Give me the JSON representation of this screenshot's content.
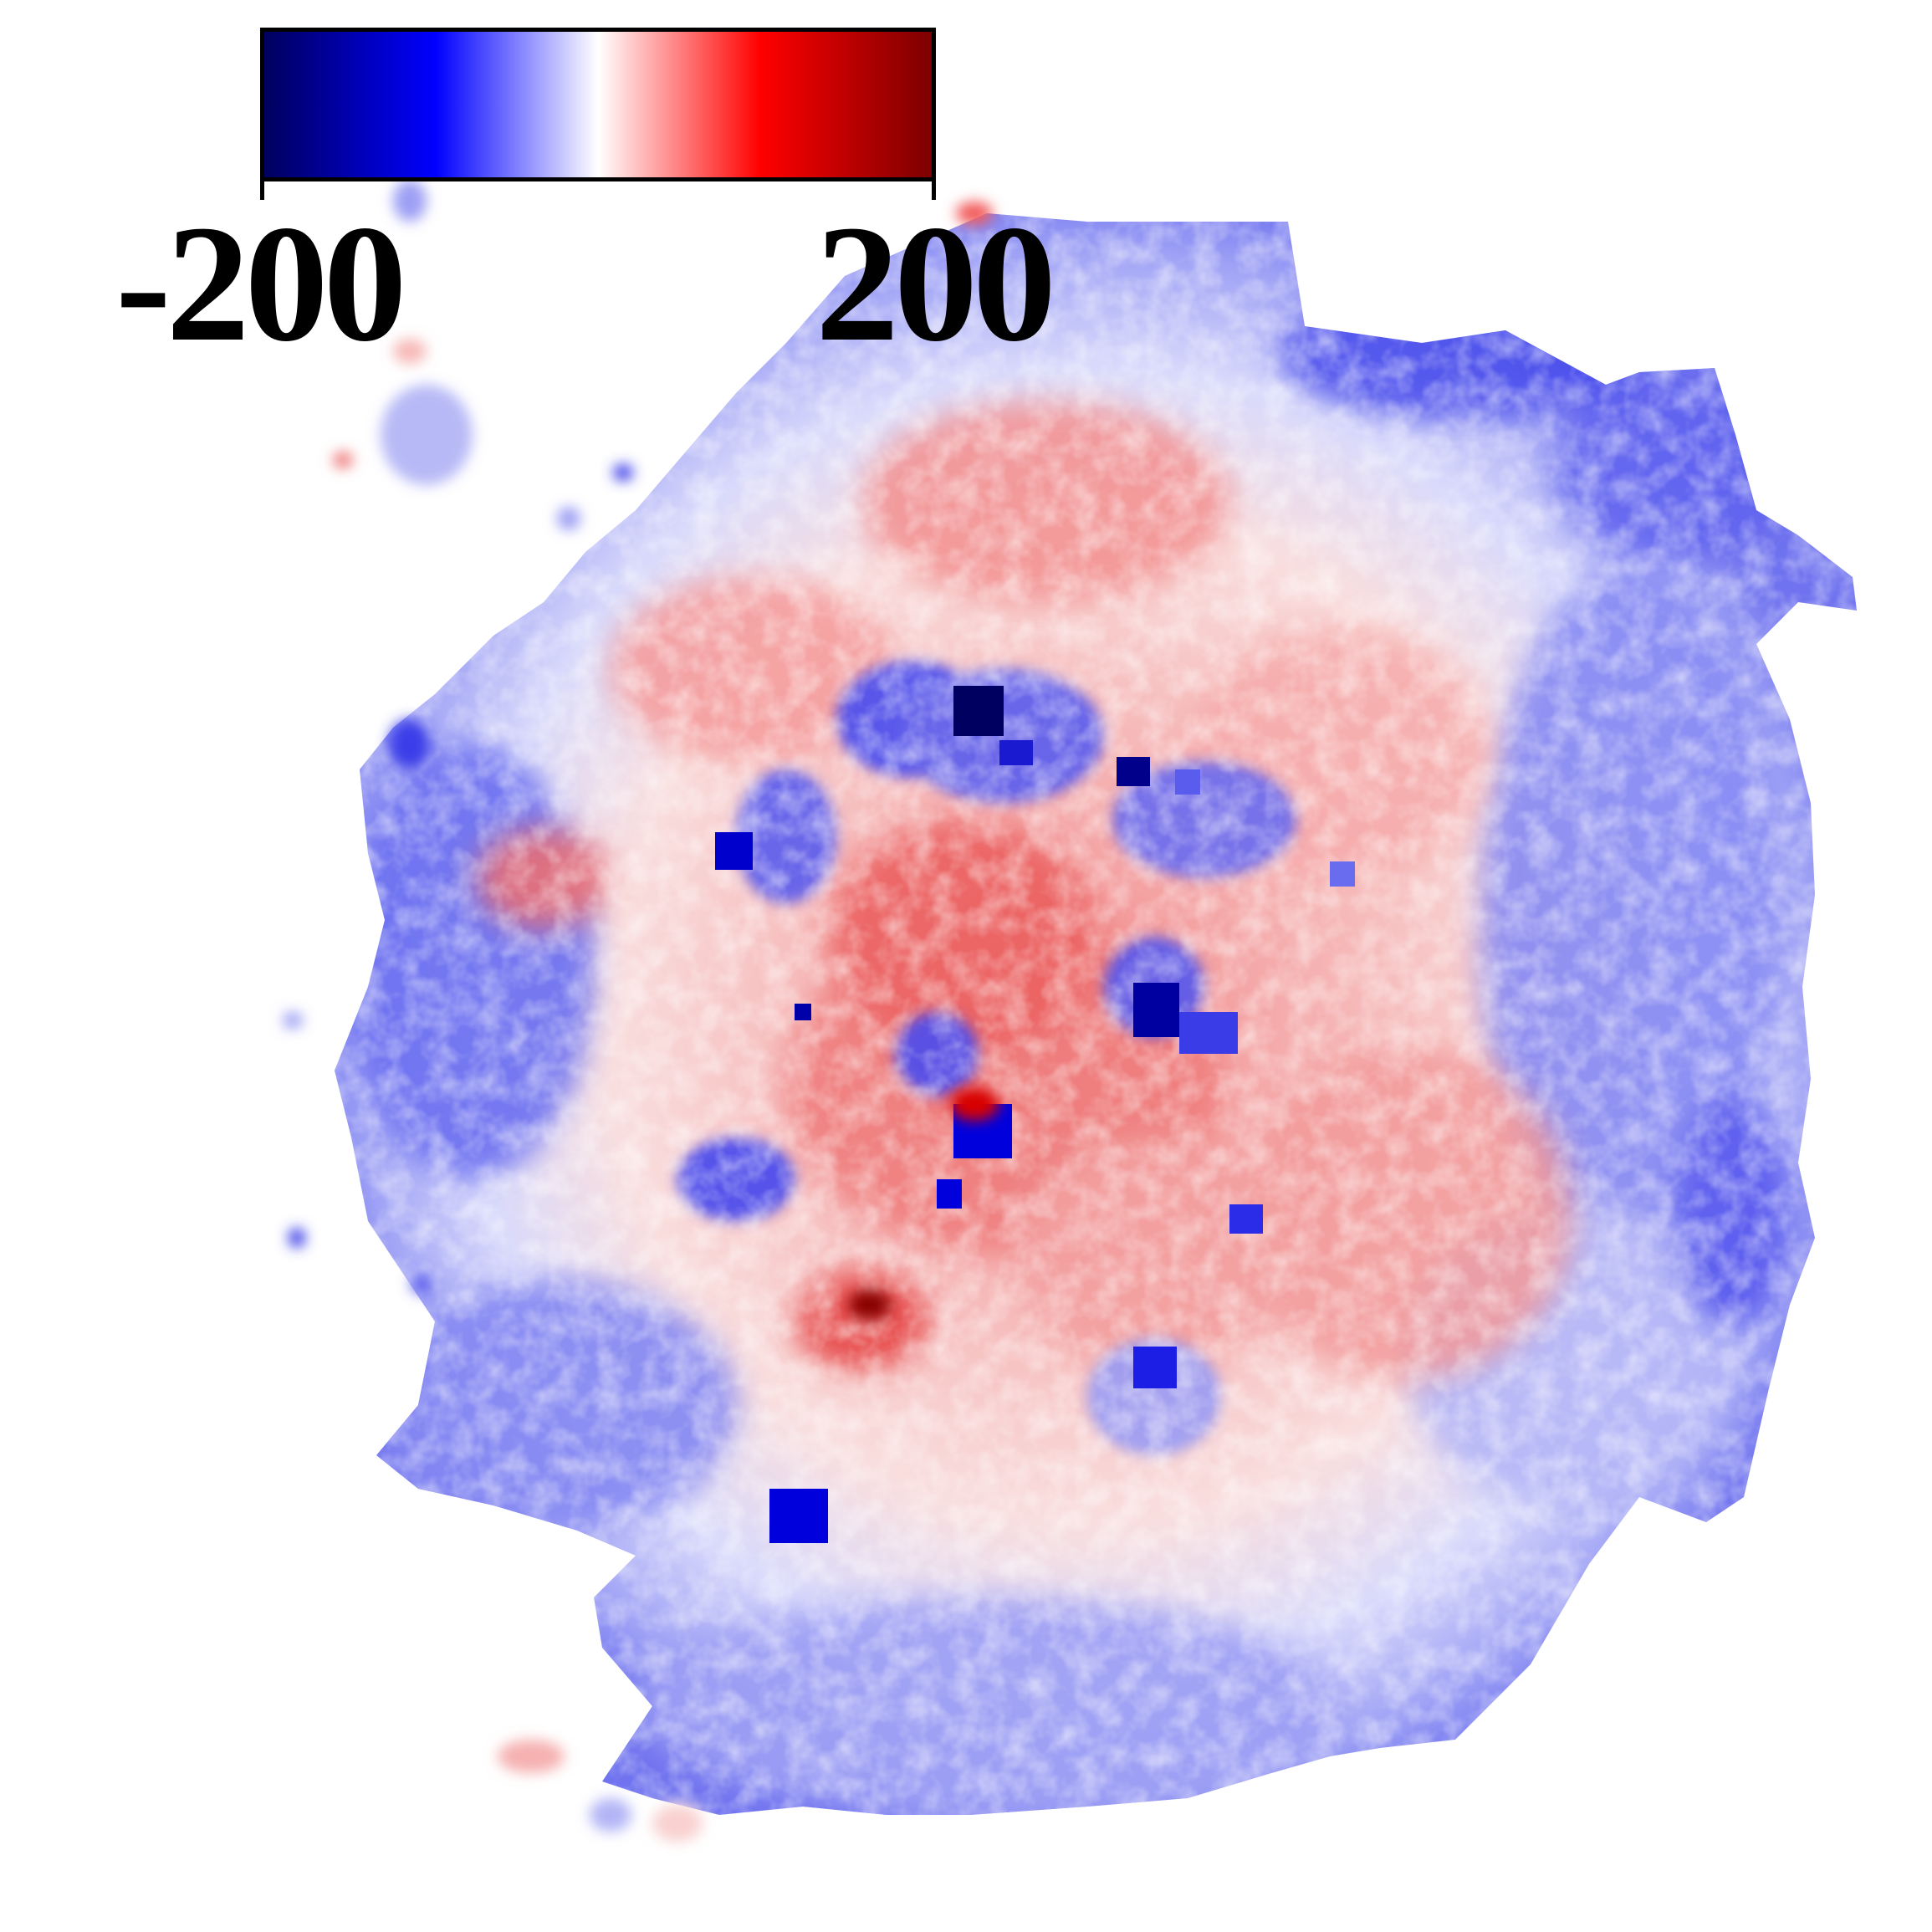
{
  "colorbar": {
    "min_label": "-200",
    "max_label": "200",
    "colors": [
      "#00005a",
      "#0000ff",
      "#ffffff",
      "#ff0000",
      "#7a0000"
    ]
  },
  "map": {
    "description_colors": {
      "negative_strong": "#0000cc",
      "negative_soft": "#8a8cf5",
      "neutral": "#ffffff",
      "positive_soft": "#f6b3b3",
      "positive_strong": "#e01010"
    }
  }
}
